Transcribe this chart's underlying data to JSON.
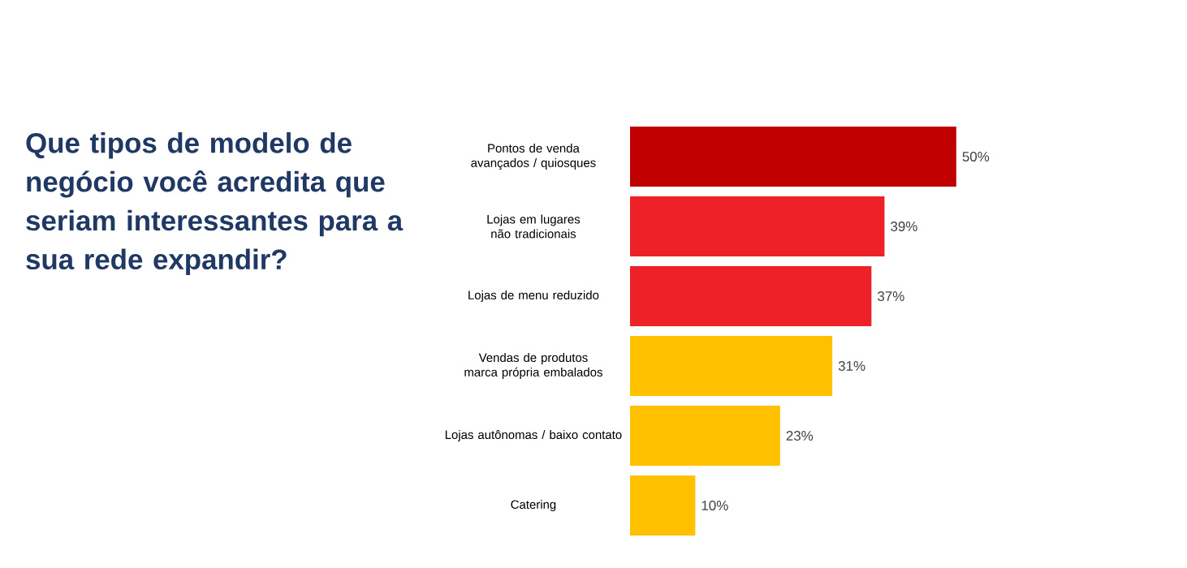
{
  "chart_data": {
    "type": "bar",
    "orientation": "horizontal",
    "title": "Que tipos de modelo de negócio você acredita que seriam interessantes para a sua rede expandir?",
    "categories": [
      "Pontos de venda avançados / quiosques",
      "Lojas em lugares não tradicionais",
      "Lojas de menu reduzido",
      "Vendas de produtos marca própria embalados",
      "Lojas autônomas / baixo contato",
      "Catering"
    ],
    "values": [
      50,
      39,
      37,
      31,
      23,
      10
    ],
    "colors": [
      "#c00000",
      "#ee2028",
      "#ee2028",
      "#ffc000",
      "#ffc000",
      "#ffc000"
    ],
    "value_labels": [
      "50%",
      "39%",
      "37%",
      "31%",
      "23%",
      "10%"
    ]
  }
}
